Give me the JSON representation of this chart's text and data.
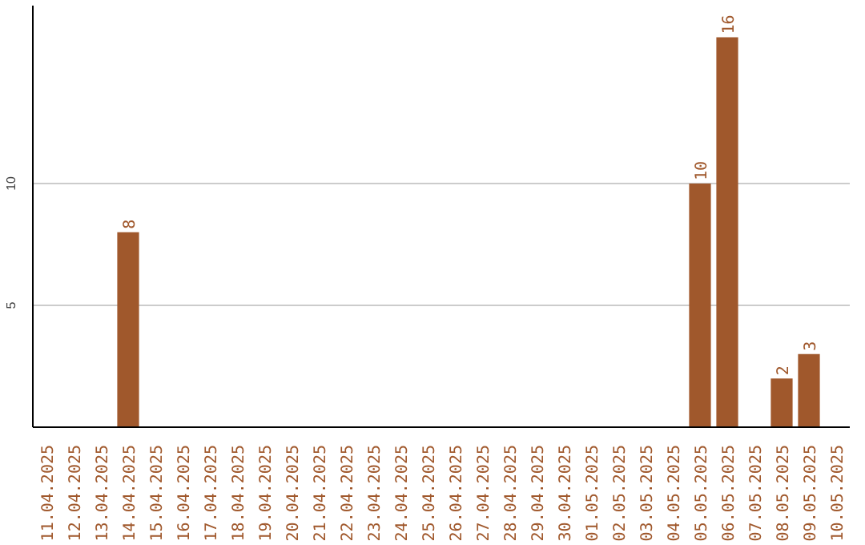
{
  "chart_data": {
    "type": "bar",
    "categories": [
      "11.04.2025",
      "12.04.2025",
      "13.04.2025",
      "14.04.2025",
      "15.04.2025",
      "16.04.2025",
      "17.04.2025",
      "18.04.2025",
      "19.04.2025",
      "20.04.2025",
      "21.04.2025",
      "22.04.2025",
      "23.04.2025",
      "24.04.2025",
      "25.04.2025",
      "26.04.2025",
      "27.04.2025",
      "28.04.2025",
      "29.04.2025",
      "30.04.2025",
      "01.05.2025",
      "02.05.2025",
      "03.05.2025",
      "04.05.2025",
      "05.05.2025",
      "06.05.2025",
      "07.05.2025",
      "08.05.2025",
      "09.05.2025",
      "10.05.2025"
    ],
    "values": [
      0,
      0,
      0,
      8,
      0,
      0,
      0,
      0,
      0,
      0,
      0,
      0,
      0,
      0,
      0,
      0,
      0,
      0,
      0,
      0,
      0,
      0,
      0,
      0,
      10,
      16,
      0,
      2,
      3,
      0
    ],
    "color": "#a0582c",
    "ylim": [
      0,
      17.3
    ],
    "yticks": [
      5,
      10
    ],
    "grid": "y",
    "value_labels": [
      null,
      null,
      null,
      "8",
      null,
      null,
      null,
      null,
      null,
      null,
      null,
      null,
      null,
      null,
      null,
      null,
      null,
      null,
      null,
      null,
      null,
      null,
      null,
      null,
      "10",
      "16",
      null,
      "2",
      "3",
      null
    ]
  }
}
